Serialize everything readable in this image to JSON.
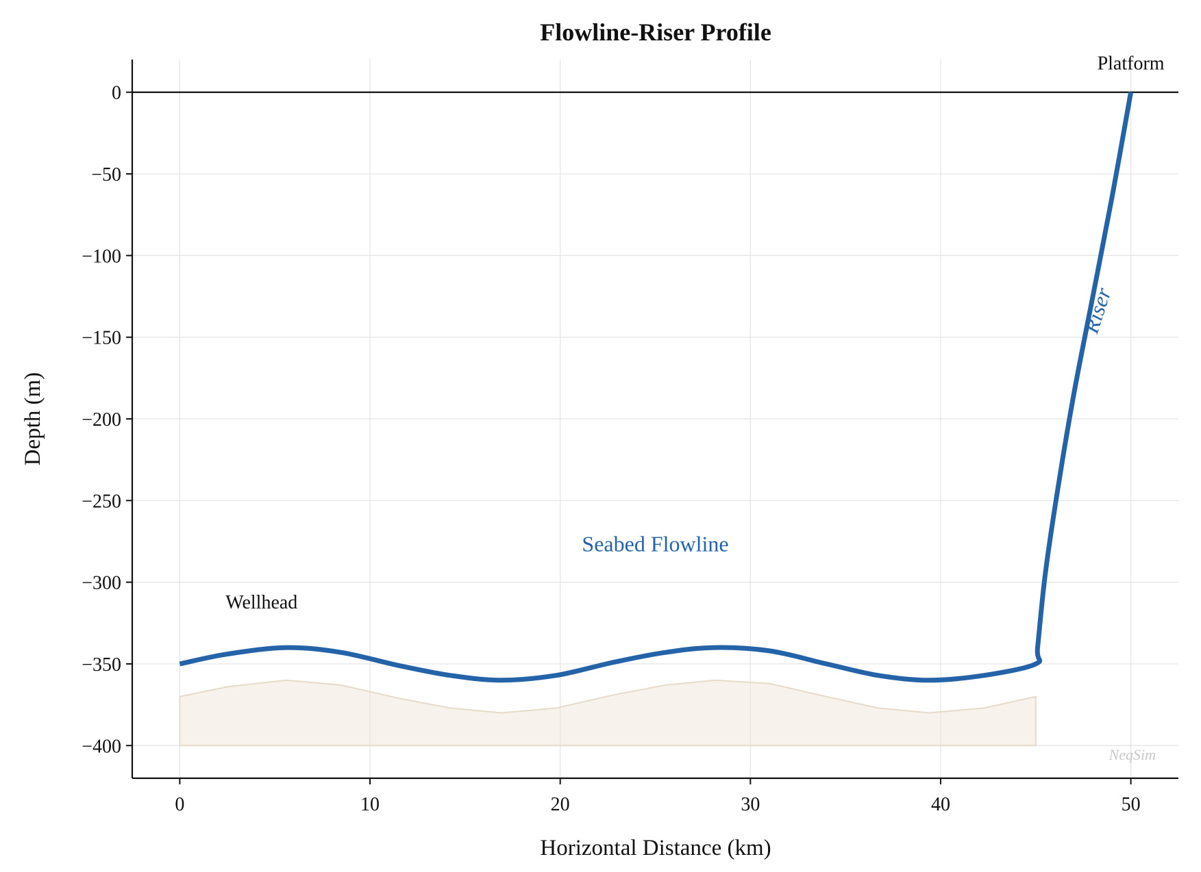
{
  "chart_data": {
    "type": "line",
    "title": "Flowline-Riser Profile",
    "xlabel": "Horizontal Distance (km)",
    "ylabel": "Depth (m)",
    "xlim": [
      -2.5,
      52.5
    ],
    "ylim": [
      -420,
      20
    ],
    "x_ticks": [
      0,
      10,
      20,
      30,
      40,
      50
    ],
    "y_ticks": [
      0,
      -50,
      -100,
      -150,
      -200,
      -250,
      -300,
      -350,
      -400
    ],
    "x_tick_labels": [
      "0",
      "10",
      "20",
      "30",
      "40",
      "50"
    ],
    "y_tick_labels": [
      "0",
      "−50",
      "−100",
      "−150",
      "−200",
      "−250",
      "−300",
      "−350",
      "−400"
    ],
    "grid": true,
    "sea_surface_level": 0,
    "series": [
      {
        "color": "#2563a8",
        "x": [
          0,
          2.5,
          5.6,
          8.5,
          11.5,
          14.2,
          16.9,
          19.8,
          22.8,
          25.5,
          28.1,
          31.0,
          34.0,
          36.7,
          39.4,
          42.3,
          45.0,
          45.1,
          45.5,
          46.2,
          47.0,
          48.0,
          49.0,
          50.0
        ],
        "y": [
          -350,
          -344,
          -340,
          -343,
          -351,
          -357,
          -360,
          -357,
          -349,
          -343,
          -340,
          -342,
          -350,
          -357,
          -360,
          -357,
          -350,
          -340,
          -295,
          -240,
          -185,
          -125,
          -65,
          0
        ]
      }
    ],
    "seabed_fill": {
      "color": "#efe6d8",
      "x": [
        0,
        2.5,
        5.6,
        8.5,
        11.5,
        14.2,
        16.9,
        19.8,
        22.8,
        25.5,
        28.1,
        31.0,
        34.0,
        36.7,
        39.4,
        42.3,
        45.0
      ],
      "y_top": [
        -370,
        -364,
        -360,
        -363,
        -371,
        -377,
        -380,
        -377,
        -369,
        -363,
        -360,
        -362,
        -370,
        -377,
        -380,
        -377,
        -370
      ],
      "y_bottom": -400
    },
    "annotations": [
      {
        "text": "Platform",
        "x": 50.0,
        "y": 14
      },
      {
        "text": "Wellhead",
        "x": 4.3,
        "y": -316
      },
      {
        "text": "Seabed Flowline",
        "x": 25.0,
        "y": -281,
        "color": "#2563a8"
      },
      {
        "text": "Riser",
        "x": 48.6,
        "y": -135,
        "color": "#2563a8",
        "rotation": -72
      }
    ],
    "watermark": "NeqSim"
  }
}
